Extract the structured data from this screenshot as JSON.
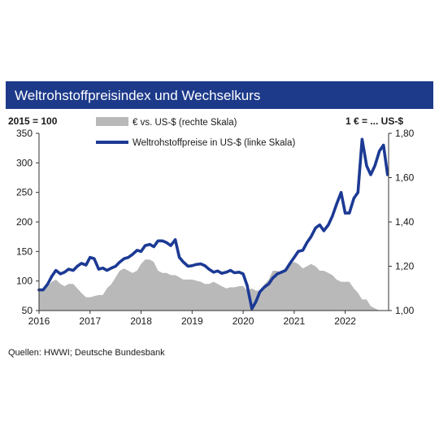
{
  "chart_data": {
    "type": "line",
    "title": "Weltrohstoffpreisindex und Wechselkurs",
    "left_axis_label": "2015 = 100",
    "right_axis_label": "1 € = ... US-$",
    "x_ticks": [
      "2016",
      "2017",
      "2018",
      "2019",
      "2020",
      "2021",
      "2022"
    ],
    "left_ticks": [
      "350",
      "300",
      "250",
      "200",
      "150",
      "100",
      "50"
    ],
    "right_ticks": [
      "1,80",
      "1,60",
      "1,40",
      "1,20",
      "1,00"
    ],
    "ylim_left": [
      50,
      350
    ],
    "ylim_right": [
      1.0,
      1.8
    ],
    "xlim": [
      2016.0,
      2022.85
    ],
    "grid": false,
    "legend_position": "top-center",
    "source": "Quellen: HWWI; Deutsche Bundesbank",
    "colors": {
      "title_bar": "#1d3a8a",
      "series_line": "#1c3a94",
      "series_area": "#b9b9b9"
    },
    "series": [
      {
        "name": "€ vs. US-$ (rechte Skala)",
        "style": "area",
        "axis": "right",
        "x": [
          2016.0,
          2016.08,
          2016.17,
          2016.25,
          2016.33,
          2016.42,
          2016.5,
          2016.58,
          2016.67,
          2016.75,
          2016.83,
          2016.92,
          2017.0,
          2017.08,
          2017.17,
          2017.25,
          2017.33,
          2017.42,
          2017.5,
          2017.58,
          2017.67,
          2017.75,
          2017.83,
          2017.92,
          2018.0,
          2018.08,
          2018.17,
          2018.25,
          2018.33,
          2018.42,
          2018.5,
          2018.58,
          2018.67,
          2018.75,
          2018.83,
          2018.92,
          2019.0,
          2019.08,
          2019.17,
          2019.25,
          2019.33,
          2019.42,
          2019.5,
          2019.58,
          2019.67,
          2019.75,
          2019.83,
          2019.92,
          2020.0,
          2020.08,
          2020.17,
          2020.25,
          2020.33,
          2020.42,
          2020.5,
          2020.58,
          2020.67,
          2020.75,
          2020.83,
          2020.92,
          2021.0,
          2021.08,
          2021.17,
          2021.25,
          2021.33,
          2021.42,
          2021.5,
          2021.58,
          2021.67,
          2021.75,
          2021.83,
          2021.92,
          2022.0,
          2022.08,
          2022.17,
          2022.25,
          2022.33,
          2022.42,
          2022.5,
          2022.58,
          2022.67,
          2022.75,
          2022.83
        ],
        "values": [
          1.09,
          1.1,
          1.11,
          1.13,
          1.14,
          1.12,
          1.11,
          1.12,
          1.12,
          1.1,
          1.08,
          1.06,
          1.06,
          1.065,
          1.07,
          1.07,
          1.1,
          1.12,
          1.15,
          1.18,
          1.19,
          1.18,
          1.17,
          1.18,
          1.21,
          1.23,
          1.23,
          1.22,
          1.18,
          1.17,
          1.17,
          1.16,
          1.16,
          1.15,
          1.14,
          1.14,
          1.14,
          1.135,
          1.13,
          1.12,
          1.12,
          1.13,
          1.12,
          1.11,
          1.1,
          1.105,
          1.105,
          1.11,
          1.11,
          1.09,
          1.1,
          1.09,
          1.09,
          1.12,
          1.14,
          1.18,
          1.18,
          1.17,
          1.18,
          1.21,
          1.22,
          1.21,
          1.19,
          1.2,
          1.21,
          1.2,
          1.18,
          1.18,
          1.17,
          1.16,
          1.14,
          1.13,
          1.13,
          1.13,
          1.1,
          1.08,
          1.05,
          1.05,
          1.02,
          1.01,
          1.0,
          0.99,
          0.98
        ]
      },
      {
        "name": "Weltrohstoffpreise in US-$ (linke Skala)",
        "style": "line",
        "axis": "left",
        "x": [
          2016.0,
          2016.08,
          2016.17,
          2016.25,
          2016.33,
          2016.42,
          2016.5,
          2016.58,
          2016.67,
          2016.75,
          2016.83,
          2016.92,
          2017.0,
          2017.08,
          2017.17,
          2017.25,
          2017.33,
          2017.42,
          2017.5,
          2017.58,
          2017.67,
          2017.75,
          2017.83,
          2017.92,
          2018.0,
          2018.08,
          2018.17,
          2018.25,
          2018.33,
          2018.42,
          2018.5,
          2018.58,
          2018.67,
          2018.75,
          2018.83,
          2018.92,
          2019.0,
          2019.08,
          2019.17,
          2019.25,
          2019.33,
          2019.42,
          2019.5,
          2019.58,
          2019.67,
          2019.75,
          2019.83,
          2019.92,
          2020.0,
          2020.08,
          2020.17,
          2020.25,
          2020.33,
          2020.42,
          2020.5,
          2020.58,
          2020.67,
          2020.75,
          2020.83,
          2020.92,
          2021.0,
          2021.08,
          2021.17,
          2021.25,
          2021.33,
          2021.42,
          2021.5,
          2021.58,
          2021.67,
          2021.75,
          2021.83,
          2021.92,
          2022.0,
          2022.08,
          2022.17,
          2022.25,
          2022.33,
          2022.42,
          2022.5,
          2022.58,
          2022.67,
          2022.75,
          2022.83
        ],
        "values": [
          85,
          85,
          95,
          108,
          118,
          112,
          115,
          120,
          118,
          125,
          130,
          127,
          140,
          138,
          120,
          122,
          118,
          122,
          125,
          132,
          138,
          140,
          145,
          152,
          150,
          160,
          162,
          158,
          168,
          168,
          165,
          160,
          170,
          140,
          132,
          125,
          126,
          128,
          129,
          126,
          120,
          115,
          117,
          113,
          115,
          118,
          114,
          115,
          112,
          92,
          53,
          65,
          82,
          90,
          95,
          105,
          112,
          115,
          118,
          130,
          140,
          150,
          152,
          165,
          175,
          190,
          195,
          185,
          195,
          210,
          230,
          250,
          215,
          215,
          240,
          250,
          340,
          295,
          280,
          295,
          320,
          330,
          280
        ]
      }
    ]
  }
}
